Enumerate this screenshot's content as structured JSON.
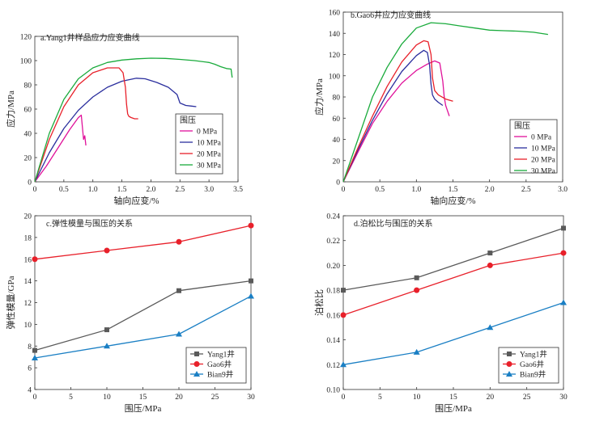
{
  "chart_data": [
    {
      "type": "line",
      "title": "a.Yang1井样品应力应变曲线",
      "xlabel": "轴向应变/%",
      "ylabel": "应力/MPa",
      "xlim": [
        0,
        3.5
      ],
      "ylim": [
        0,
        120
      ],
      "xticks": [
        0,
        0.5,
        1.0,
        1.5,
        2.0,
        2.5,
        3.0,
        3.5
      ],
      "xticklabels": [
        "0",
        "0.5",
        "1.0",
        "1.5",
        "2.0",
        "2.5",
        "3.0",
        "3.5"
      ],
      "yticks": [
        0,
        20,
        40,
        60,
        80,
        100,
        120
      ],
      "yticklabels": [
        "0",
        "20",
        "40",
        "60",
        "80",
        "100",
        "120"
      ],
      "legend_title": "围压",
      "legend_position": "lower-right",
      "series": [
        {
          "name": "0 MPa",
          "color": "#e0119a",
          "x": [
            0,
            0.2,
            0.4,
            0.6,
            0.75,
            0.8,
            0.82,
            0.84,
            0.86,
            0.88
          ],
          "y": [
            0,
            13,
            28,
            43,
            53,
            55,
            45,
            35,
            38,
            30
          ]
        },
        {
          "name": "10 MPa",
          "color": "#2b2f9e",
          "x": [
            0,
            0.25,
            0.5,
            0.75,
            1.0,
            1.25,
            1.5,
            1.75,
            1.9,
            2.1,
            2.3,
            2.45,
            2.5,
            2.55,
            2.6,
            2.7,
            2.78
          ],
          "y": [
            0,
            24,
            44,
            59,
            70,
            78,
            83,
            85.5,
            85,
            82,
            78,
            72,
            65,
            64,
            63,
            62.5,
            62
          ]
        },
        {
          "name": "20 MPa",
          "color": "#e8202a",
          "x": [
            0,
            0.25,
            0.5,
            0.75,
            1.0,
            1.25,
            1.45,
            1.52,
            1.56,
            1.58,
            1.6,
            1.62,
            1.66,
            1.72,
            1.78
          ],
          "y": [
            0,
            35,
            62,
            80,
            90,
            94,
            94,
            90,
            78,
            64,
            56,
            54,
            53,
            52,
            52
          ]
        },
        {
          "name": "30 MPa",
          "color": "#1aab3c",
          "x": [
            0,
            0.25,
            0.5,
            0.75,
            1.0,
            1.25,
            1.5,
            1.75,
            2.0,
            2.25,
            2.5,
            2.75,
            3.0,
            3.1,
            3.2,
            3.3,
            3.38,
            3.4
          ],
          "y": [
            0,
            40,
            68,
            85,
            94,
            98.5,
            100.5,
            101.5,
            102,
            101.8,
            101,
            100,
            98.5,
            97,
            95,
            93.5,
            93,
            86
          ]
        }
      ]
    },
    {
      "type": "line",
      "title": "b.Gao6井应力应变曲线",
      "xlabel": "轴向应变/%",
      "ylabel": "应力/MPa",
      "xlim": [
        0,
        3.0
      ],
      "ylim": [
        0,
        160
      ],
      "xticks": [
        0,
        0.5,
        1.0,
        1.5,
        2.0,
        2.5,
        3.0
      ],
      "xticklabels": [
        "0",
        "0.5",
        "1.0",
        "1.5",
        "2.0",
        "2.5",
        "3.0"
      ],
      "yticks": [
        0,
        20,
        40,
        60,
        80,
        100,
        120,
        140,
        160
      ],
      "yticklabels": [
        "0",
        "20",
        "40",
        "60",
        "80",
        "100",
        "120",
        "140",
        "160"
      ],
      "legend_title": "围压",
      "legend_position": "lower-right",
      "series": [
        {
          "name": "0 MPa",
          "color": "#e0119a",
          "x": [
            0,
            0.2,
            0.4,
            0.6,
            0.8,
            1.0,
            1.15,
            1.25,
            1.32,
            1.36,
            1.38,
            1.4,
            1.42,
            1.45
          ],
          "y": [
            0,
            28,
            55,
            76,
            93,
            105,
            111,
            114,
            112,
            95,
            80,
            72,
            68,
            62
          ]
        },
        {
          "name": "10 MPa",
          "color": "#2b2f9e",
          "x": [
            0,
            0.2,
            0.4,
            0.6,
            0.8,
            1.0,
            1.1,
            1.15,
            1.18,
            1.2,
            1.22,
            1.25,
            1.3,
            1.36
          ],
          "y": [
            0,
            30,
            58,
            83,
            104,
            119,
            124,
            122,
            110,
            92,
            82,
            78,
            75,
            72
          ]
        },
        {
          "name": "20 MPa",
          "color": "#e8202a",
          "x": [
            0,
            0.2,
            0.4,
            0.6,
            0.8,
            1.0,
            1.1,
            1.16,
            1.2,
            1.22,
            1.25,
            1.3,
            1.4,
            1.5
          ],
          "y": [
            0,
            32,
            62,
            90,
            113,
            129,
            133,
            132,
            120,
            98,
            86,
            82,
            78,
            76
          ]
        },
        {
          "name": "30 MPa",
          "color": "#1aab3c",
          "x": [
            0,
            0.2,
            0.4,
            0.6,
            0.8,
            1.0,
            1.2,
            1.4,
            1.6,
            1.8,
            2.0,
            2.2,
            2.4,
            2.6,
            2.8
          ],
          "y": [
            0,
            40,
            80,
            108,
            130,
            145,
            150,
            149,
            147,
            145,
            143,
            142.5,
            142,
            141,
            139
          ]
        }
      ]
    },
    {
      "type": "line",
      "title": "c.弹性模量与围压的关系",
      "xlabel": "围压/MPa",
      "ylabel": "弹性模量/GPa",
      "xlim": [
        0,
        30
      ],
      "ylim": [
        4,
        20
      ],
      "xticks": [
        0,
        5,
        10,
        15,
        20,
        25,
        30
      ],
      "xticklabels": [
        "0",
        "5",
        "10",
        "15",
        "20",
        "25",
        "30"
      ],
      "yticks": [
        4,
        6,
        8,
        10,
        12,
        14,
        16,
        18,
        20
      ],
      "yticklabels": [
        "4",
        "6",
        "8",
        "10",
        "12",
        "14",
        "16",
        "18",
        "20"
      ],
      "legend_position": "lower-right",
      "series": [
        {
          "name": "Yang1井",
          "color": "#5a5a5a",
          "marker": "square",
          "x": [
            0,
            10,
            20,
            30
          ],
          "y": [
            7.6,
            9.5,
            13.1,
            14.0
          ]
        },
        {
          "name": "Gao6井",
          "color": "#e8202a",
          "marker": "circle",
          "x": [
            0,
            10,
            20,
            30
          ],
          "y": [
            16.0,
            16.8,
            17.6,
            19.1
          ]
        },
        {
          "name": "Bian9井",
          "color": "#1a7fc4",
          "marker": "triangle",
          "x": [
            0,
            10,
            20,
            30
          ],
          "y": [
            6.9,
            8.0,
            9.1,
            12.6
          ]
        }
      ]
    },
    {
      "type": "line",
      "title": "d.泊松比与围压的关系",
      "xlabel": "围压/MPa",
      "ylabel": "泊松比",
      "xlim": [
        0,
        30
      ],
      "ylim": [
        0.1,
        0.24
      ],
      "xticks": [
        0,
        5,
        10,
        15,
        20,
        25,
        30
      ],
      "xticklabels": [
        "0",
        "5",
        "10",
        "15",
        "20",
        "25",
        "30"
      ],
      "yticks": [
        0.1,
        0.12,
        0.14,
        0.16,
        0.18,
        0.2,
        0.22,
        0.24
      ],
      "yticklabels": [
        "0.10",
        "0.12",
        "0.14",
        "0.16",
        "0.18",
        "0.20",
        "0.22",
        "0.24"
      ],
      "legend_position": "lower-right",
      "series": [
        {
          "name": "Yang1井",
          "color": "#5a5a5a",
          "marker": "square",
          "x": [
            0,
            10,
            20,
            30
          ],
          "y": [
            0.18,
            0.19,
            0.21,
            0.23
          ]
        },
        {
          "name": "Gao6井",
          "color": "#e8202a",
          "marker": "circle",
          "x": [
            0,
            10,
            20,
            30
          ],
          "y": [
            0.16,
            0.18,
            0.2,
            0.21
          ]
        },
        {
          "name": "Bian9井",
          "color": "#1a7fc4",
          "marker": "triangle",
          "x": [
            0,
            10,
            20,
            30
          ],
          "y": [
            0.12,
            0.13,
            0.15,
            0.17
          ]
        }
      ]
    }
  ]
}
